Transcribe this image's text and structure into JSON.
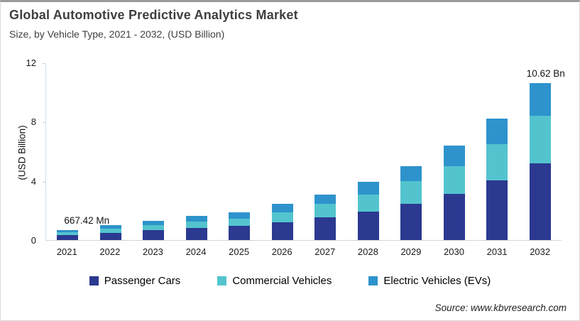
{
  "header": {
    "title": "Global Automotive Predictive Analytics Market",
    "subtitle": "Size, by Vehicle Type, 2021 - 2032, (USD Billion)"
  },
  "footer": {
    "source": "Source: www.kbvresearch.com"
  },
  "chart_data": {
    "type": "bar",
    "stacked": true,
    "title": "Global Automotive Predictive Analytics Market",
    "subtitle": "Size, by Vehicle Type, 2021 - 2032, (USD Billion)",
    "xlabel": "",
    "ylabel": "(USD Billion)",
    "ylim": [
      0,
      12
    ],
    "yticks": [
      0,
      4,
      8,
      12
    ],
    "grid": false,
    "legend_position": "bottom",
    "categories": [
      "2021",
      "2022",
      "2023",
      "2024",
      "2025",
      "2026",
      "2027",
      "2028",
      "2029",
      "2030",
      "2031",
      "2032"
    ],
    "series": [
      {
        "name": "Passenger Cars",
        "color": "#2b3990",
        "values": [
          0.33,
          0.5,
          0.68,
          0.8,
          0.95,
          1.2,
          1.55,
          1.9,
          2.44,
          3.1,
          4.02,
          5.2
        ]
      },
      {
        "name": "Commercial Vehicles",
        "color": "#53c4ce",
        "values": [
          0.19,
          0.27,
          0.35,
          0.44,
          0.49,
          0.67,
          0.9,
          1.19,
          1.53,
          1.91,
          2.45,
          3.2
        ]
      },
      {
        "name": "Electric Vehicles (EVs)",
        "color": "#2e93cc",
        "values": [
          0.15,
          0.23,
          0.28,
          0.38,
          0.43,
          0.6,
          0.61,
          0.85,
          1.01,
          1.39,
          1.73,
          2.22
        ]
      }
    ],
    "annotations": [
      {
        "text": "667.42 Mn",
        "category": "2021"
      },
      {
        "text": "10.62 Bn",
        "category": "2032"
      }
    ]
  }
}
